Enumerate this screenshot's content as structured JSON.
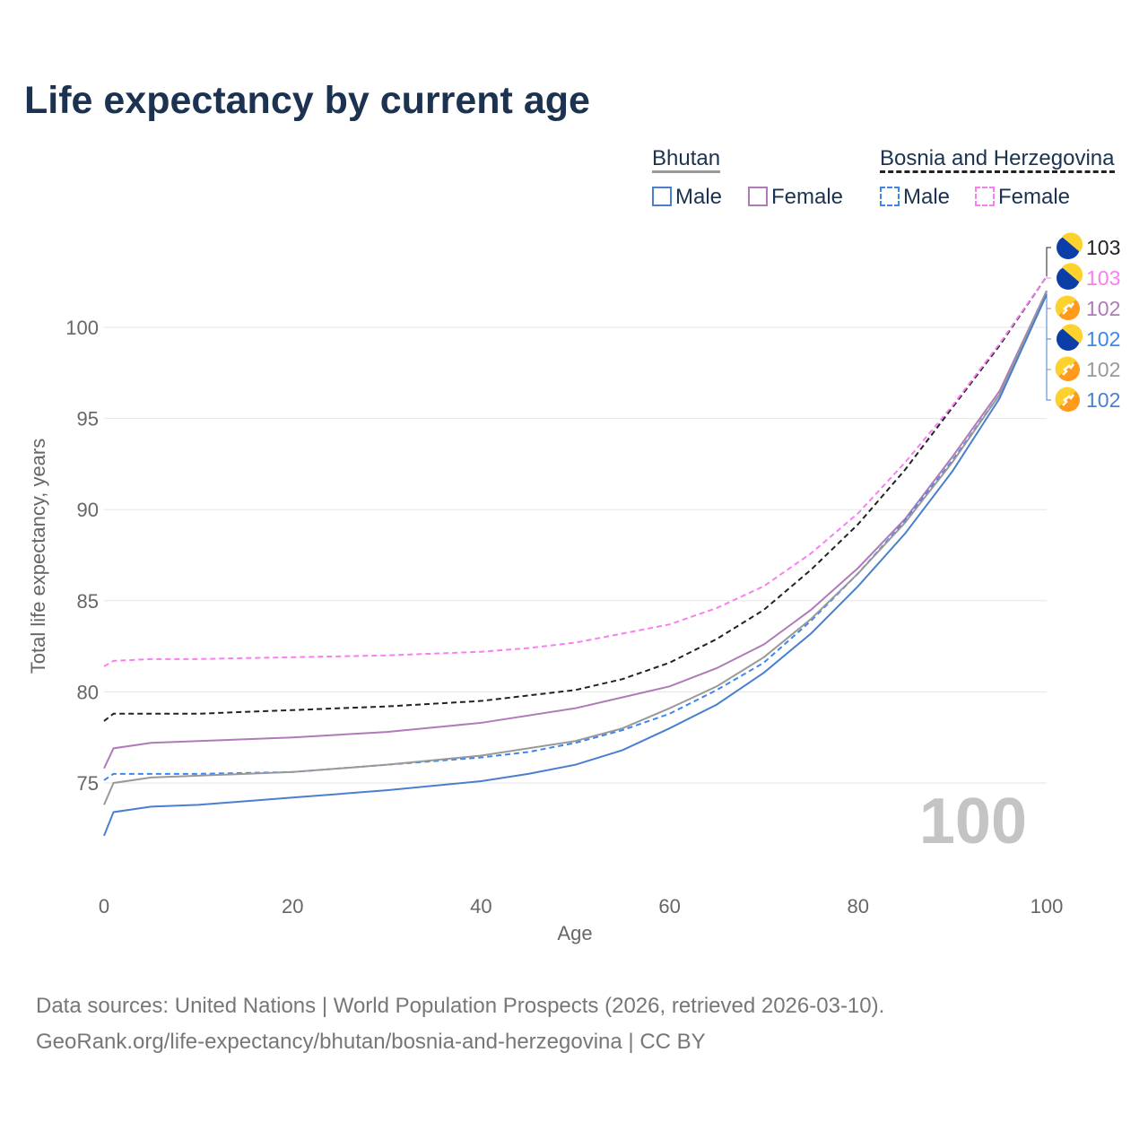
{
  "title": "Life expectancy by current age",
  "source_line1": "Data sources: United Nations | World Population Prospects (2026, retrieved 2026-03-10).",
  "source_line2": "GeoRank.org/life-expectancy/bhutan/bosnia-and-herzegovina | CC BY",
  "watermark_age": "100",
  "legend": {
    "group1": "Bhutan",
    "group2": "Bosnia and Herzegovina",
    "male": "Male",
    "female": "Female"
  },
  "chart_data": {
    "type": "line",
    "title": "Life expectancy by current age",
    "xlabel": "Age",
    "ylabel": "Total life expectancy, years",
    "xlim": [
      0,
      100
    ],
    "ylim": [
      70.5,
      104
    ],
    "xticks": [
      "0",
      "20",
      "40",
      "60",
      "80",
      "100"
    ],
    "yticks": [
      "75",
      "80",
      "85",
      "90",
      "95",
      "100"
    ],
    "x": [
      0,
      1,
      5,
      10,
      20,
      30,
      40,
      45,
      50,
      55,
      60,
      65,
      70,
      75,
      80,
      85,
      90,
      95,
      100
    ],
    "series": [
      {
        "name": "Bosnia and Herzegovina Total",
        "color": "#222222",
        "dash": true,
        "end_label": "103",
        "flag": "bih",
        "values": [
          78.4,
          78.8,
          78.8,
          78.8,
          79.0,
          79.2,
          79.5,
          79.8,
          80.1,
          80.7,
          81.6,
          82.9,
          84.5,
          86.7,
          89.2,
          92.2,
          95.6,
          99.0,
          102.8
        ]
      },
      {
        "name": "Bosnia and Herzegovina Female",
        "color": "#f77ff0",
        "dash": true,
        "end_label": "103",
        "flag": "bih",
        "values": [
          81.4,
          81.7,
          81.8,
          81.8,
          81.9,
          82.0,
          82.2,
          82.4,
          82.7,
          83.2,
          83.7,
          84.6,
          85.8,
          87.6,
          89.8,
          92.6,
          95.7,
          99.1,
          102.8
        ]
      },
      {
        "name": "Bhutan Female",
        "color": "#b07ab8",
        "dash": false,
        "end_label": "102",
        "flag": "btn",
        "values": [
          75.8,
          76.9,
          77.2,
          77.3,
          77.5,
          77.8,
          78.3,
          78.7,
          79.1,
          79.7,
          80.3,
          81.3,
          82.6,
          84.5,
          86.8,
          89.5,
          92.9,
          96.5,
          102.0
        ]
      },
      {
        "name": "Bosnia and Herzegovina Male",
        "color": "#3b86f0",
        "dash": true,
        "end_label": "102",
        "flag": "bih",
        "values": [
          75.15,
          75.5,
          75.5,
          75.5,
          75.6,
          76.0,
          76.4,
          76.7,
          77.2,
          77.9,
          78.8,
          80.1,
          81.6,
          83.9,
          86.5,
          89.4,
          92.7,
          96.3,
          102.0
        ]
      },
      {
        "name": "Bhutan Total",
        "color": "#999999",
        "dash": false,
        "end_label": "102",
        "flag": "btn",
        "values": [
          73.8,
          75.0,
          75.3,
          75.4,
          75.6,
          76.0,
          76.5,
          76.9,
          77.3,
          78.0,
          79.1,
          80.3,
          81.9,
          84.0,
          86.5,
          89.3,
          92.6,
          96.3,
          102.0
        ]
      },
      {
        "name": "Bhutan Male",
        "color": "#4a7fd0",
        "dash": false,
        "end_label": "102",
        "flag": "btn",
        "values": [
          72.1,
          73.4,
          73.7,
          73.8,
          74.2,
          74.6,
          75.1,
          75.5,
          76.0,
          76.8,
          78.0,
          79.3,
          81.05,
          83.2,
          85.8,
          88.7,
          92.1,
          96.1,
          101.8
        ]
      }
    ]
  }
}
